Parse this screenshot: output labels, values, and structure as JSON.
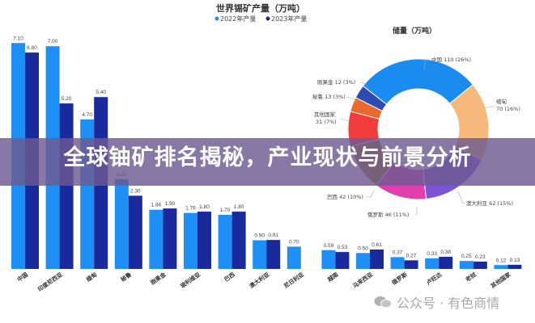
{
  "chart_data": [
    {
      "type": "bar",
      "title": "世界锡矿产量（万吨）",
      "categories": [
        "中国",
        "印度尼西亚",
        "缅甸",
        "秘鲁",
        "刚果金",
        "玻利维亚",
        "巴西",
        "澳大利亚",
        "尼日利亚",
        "越南",
        "马来西亚",
        "俄罗斯",
        "卢旺达",
        "老挝",
        "其他国家"
      ],
      "series": [
        {
          "name": "2022年产量",
          "color": "#1e90f5",
          "values": [
            7.1,
            7.0,
            4.7,
            2.82,
            1.86,
            1.76,
            1.7,
            0.9,
            0.7,
            0.59,
            0.5,
            0.37,
            0.33,
            0.25,
            0.12
          ]
        },
        {
          "name": "2023年产量",
          "color": "#1a2a9c",
          "values": [
            6.8,
            5.2,
            5.4,
            2.3,
            1.9,
            1.8,
            1.8,
            0.91,
            null,
            0.53,
            0.61,
            0.27,
            0.38,
            0.23,
            0.13
          ]
        }
      ],
      "value_labels": [
        [
          "7.10",
          "7.00",
          "4.70",
          "2.82",
          "1.86",
          "1.76",
          "1.70",
          "0.90",
          "0.70",
          "0.59",
          "0.50",
          "0.37",
          "0.33",
          "0.25",
          "0.12"
        ],
        [
          "6.80",
          "5.20",
          "5.40",
          "2.30",
          "1.90",
          "1.80",
          "1.80",
          "0.91",
          "",
          "0.53",
          "0.61",
          "0.27",
          "0.38",
          "0.23",
          "0.13"
        ]
      ],
      "legend_placement": "top",
      "grid": false
    },
    {
      "type": "pie",
      "donut": true,
      "title": "储量（万吨）",
      "slices": [
        {
          "label": "中国",
          "value": 110,
          "percent": "26%",
          "text": "中国 110 (26%)",
          "color": "#1a8cf0"
        },
        {
          "label": "缅甸",
          "value": 70,
          "percent": "16%",
          "text": "缅甸",
          "text2": "70 (16%)",
          "color": "#f6b97c"
        },
        {
          "label": "澳大利亚",
          "value": 62,
          "percent": "15%",
          "text": "澳大利亚 62 (15%)",
          "color": "#7b55d6"
        },
        {
          "label": "俄罗斯",
          "value": 46,
          "percent": "11%",
          "text": "俄罗斯 46 (11%)",
          "color": "#e23fae"
        },
        {
          "label": "巴西",
          "value": 42,
          "percent": "10%",
          "text": "巴西 42 (10%)",
          "color": "#a97b12"
        },
        {
          "label": "其他国家",
          "value": 31,
          "percent": "7%",
          "text": "其他国家",
          "text2": "31 (7%)",
          "color": "#f23c3c"
        },
        {
          "label": "秘鲁",
          "value": 13,
          "percent": "3%",
          "text": "秘鲁 13 (3%)",
          "color": "#e86a2c"
        },
        {
          "label": "刚果金",
          "value": 12,
          "percent": "3%",
          "text": "刚果金 12 (3%)",
          "color": "#2d4cb2"
        }
      ]
    }
  ],
  "banner": {
    "title": "全球铀矿排名揭秘，产业现状与前景分析"
  },
  "watermark": {
    "text": "公众号 · 有色商情",
    "icon": "wechat-icon"
  }
}
